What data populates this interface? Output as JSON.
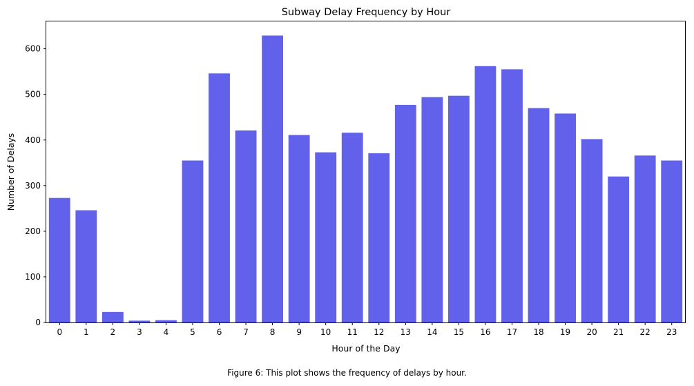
{
  "chart_data": {
    "type": "bar",
    "title": "Subway Delay Frequency by Hour",
    "xlabel": "Hour of the Day",
    "ylabel": "Number of Delays",
    "categories": [
      "0",
      "1",
      "2",
      "3",
      "4",
      "5",
      "6",
      "7",
      "8",
      "9",
      "10",
      "11",
      "12",
      "13",
      "14",
      "15",
      "16",
      "17",
      "18",
      "19",
      "20",
      "21",
      "22",
      "23"
    ],
    "values": [
      273,
      246,
      23,
      4,
      5,
      355,
      546,
      421,
      629,
      411,
      373,
      416,
      371,
      477,
      494,
      497,
      562,
      555,
      470,
      458,
      402,
      320,
      366,
      355
    ],
    "ylim": [
      0,
      660
    ],
    "yticks": [
      0,
      100,
      200,
      300,
      400,
      500,
      600
    ],
    "bar_color": "#6161eb",
    "grid": false,
    "legend": "none"
  },
  "caption": "Figure 6: This plot shows the frequency of delays by hour."
}
